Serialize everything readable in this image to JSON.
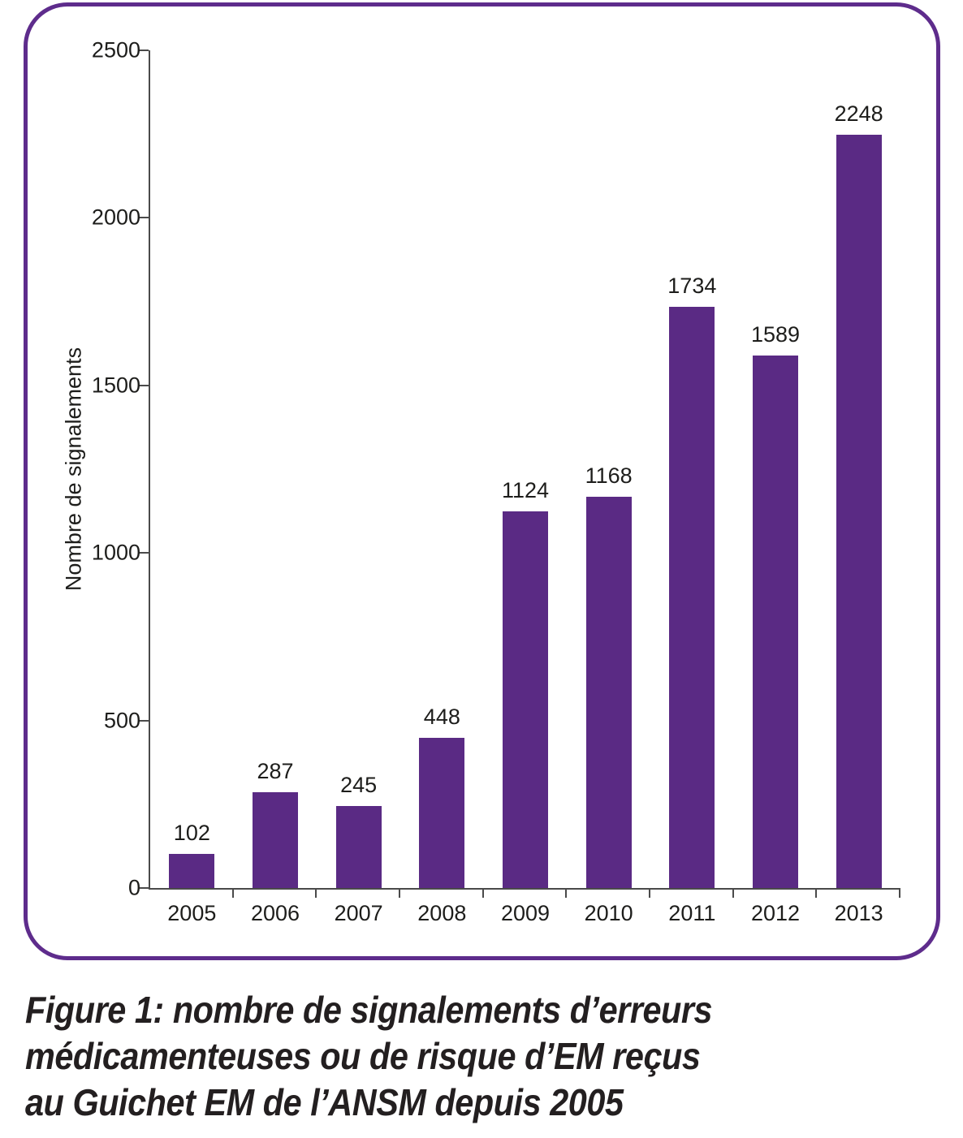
{
  "figure": {
    "panel_border_color": "#5e2c8c",
    "background_color": "#ffffff",
    "axis_color": "#4a4a4a",
    "text_color": "#1d1d1b"
  },
  "chart_data": {
    "type": "bar",
    "categories": [
      "2005",
      "2006",
      "2007",
      "2008",
      "2009",
      "2010",
      "2011",
      "2012",
      "2013"
    ],
    "values": [
      102,
      287,
      245,
      448,
      1124,
      1168,
      1734,
      1589,
      2248
    ],
    "title": "",
    "xlabel": "",
    "ylabel": "Nombre de signalements",
    "ylim": [
      0,
      2500
    ],
    "yticks": [
      0,
      500,
      1000,
      1500,
      2000,
      2500
    ],
    "bar_color": "#5a2a84",
    "data_labels": true,
    "legend": "none",
    "grid": false
  },
  "caption": {
    "lines": [
      "Figure 1: nombre de signalements d’erreurs",
      "médicamenteuses ou de risque d’EM reçus",
      "au Guichet EM de l’ANSM depuis 2005"
    ]
  }
}
